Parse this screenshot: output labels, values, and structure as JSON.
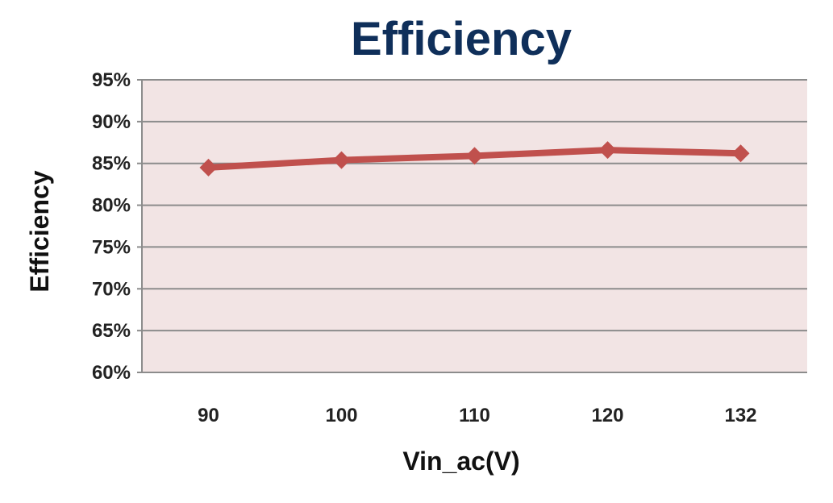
{
  "chart_data": {
    "type": "line",
    "title": "Efficiency",
    "xlabel": "Vin_ac(V)",
    "ylabel": "Efficiency",
    "categories": [
      "90",
      "100",
      "110",
      "120",
      "132"
    ],
    "series": [
      {
        "values": [
          84.5,
          85.4,
          85.9,
          86.6,
          86.2
        ],
        "color": "#c0504d"
      }
    ],
    "ylim": [
      60,
      95
    ],
    "yticks": [
      "60%",
      "65%",
      "70%",
      "75%",
      "80%",
      "85%",
      "90%",
      "95%"
    ],
    "grid": true,
    "legend": "none",
    "plot_background": "#f2e4e4",
    "title_color": "#0f2f5a"
  }
}
